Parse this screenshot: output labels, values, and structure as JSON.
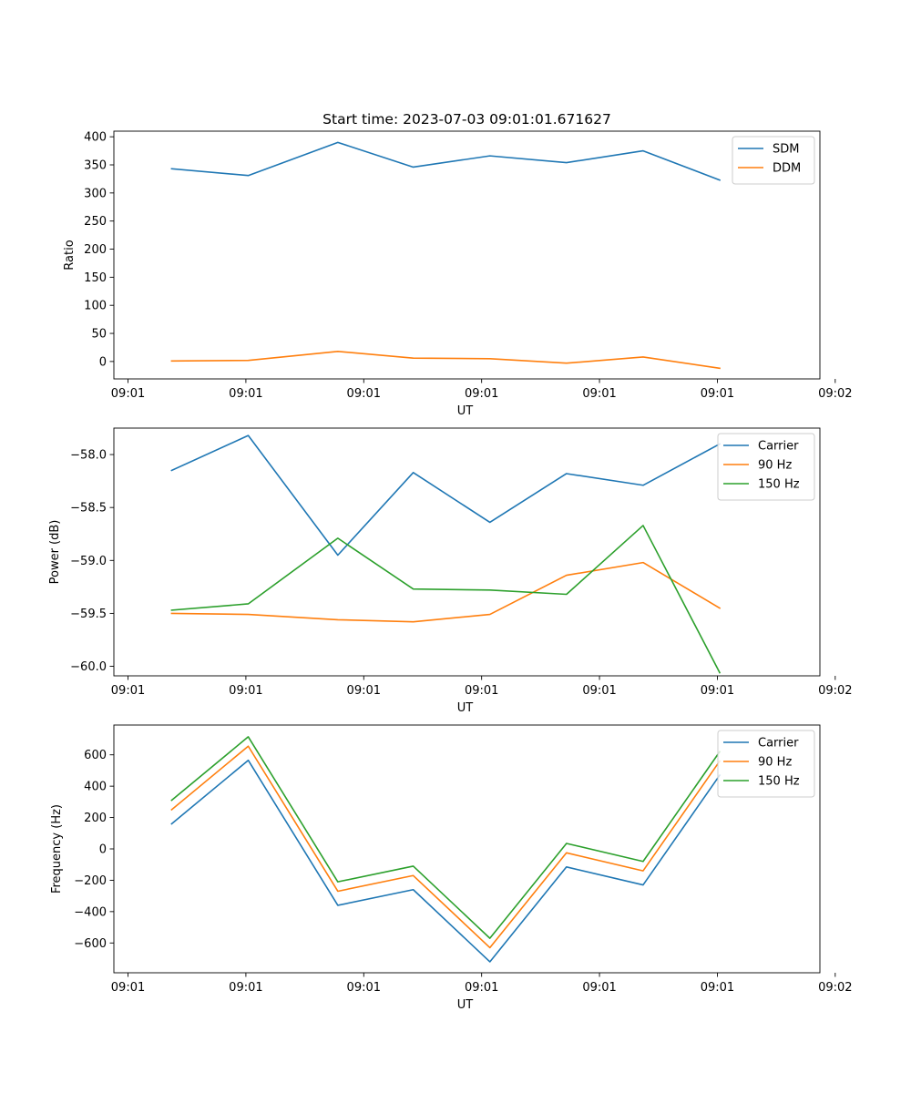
{
  "chart_data": [
    {
      "type": "line",
      "title": "Start time: 2023-07-03 09:01:01.671627",
      "xlabel": "UT",
      "ylabel": "Ratio",
      "legend": "top-right",
      "grid": false,
      "xlim": [
        -0.12,
        5.87
      ],
      "ylim": [
        -31,
        410
      ],
      "x": [
        0.37,
        1.02,
        1.78,
        2.42,
        3.07,
        3.72,
        4.37,
        5.02
      ],
      "xticks": [
        0,
        1,
        2,
        3,
        4,
        5,
        6
      ],
      "xtick_labels": [
        "09:01",
        "09:01",
        "09:01",
        "09:01",
        "09:01",
        "09:01",
        "09:02"
      ],
      "yticks": [
        0,
        50,
        100,
        150,
        200,
        250,
        300,
        350,
        400
      ],
      "ytick_labels": [
        "0",
        "50",
        "100",
        "150",
        "200",
        "250",
        "300",
        "350",
        "400"
      ],
      "series": [
        {
          "name": "SDM",
          "color": "#1f77b4",
          "values": [
            343,
            331,
            390,
            346,
            366,
            354,
            375,
            323
          ]
        },
        {
          "name": "DDM",
          "color": "#ff7f0e",
          "values": [
            1,
            2,
            18,
            6,
            5,
            -3,
            8,
            -12
          ]
        }
      ]
    },
    {
      "type": "line",
      "xlabel": "UT",
      "ylabel": "Power (dB)",
      "legend": "top-right",
      "grid": false,
      "xlim": [
        -0.12,
        5.87
      ],
      "ylim": [
        -60.09,
        -57.75
      ],
      "x": [
        0.37,
        1.02,
        1.78,
        2.42,
        3.07,
        3.72,
        4.37,
        5.02
      ],
      "xticks": [
        0,
        1,
        2,
        3,
        4,
        5,
        6
      ],
      "xtick_labels": [
        "09:01",
        "09:01",
        "09:01",
        "09:01",
        "09:01",
        "09:01",
        "09:02"
      ],
      "yticks": [
        -58.0,
        -58.5,
        -59.0,
        -59.5,
        -60.0
      ],
      "ytick_labels": [
        "−58.0",
        "−58.5",
        "−59.0",
        "−59.5",
        "−60.0"
      ],
      "series": [
        {
          "name": "Carrier",
          "color": "#1f77b4",
          "values": [
            -58.15,
            -57.82,
            -58.95,
            -58.17,
            -58.64,
            -58.18,
            -58.29,
            -57.9
          ]
        },
        {
          "name": "90 Hz",
          "color": "#ff7f0e",
          "values": [
            -59.5,
            -59.51,
            -59.56,
            -59.58,
            -59.51,
            -59.14,
            -59.02,
            -59.45
          ]
        },
        {
          "name": "150 Hz",
          "color": "#2ca02c",
          "values": [
            -59.47,
            -59.41,
            -58.79,
            -59.27,
            -59.28,
            -59.32,
            -58.67,
            -60.06
          ]
        }
      ]
    },
    {
      "type": "line",
      "xlabel": "UT",
      "ylabel": "Frequency (Hz)",
      "legend": "top-right",
      "grid": false,
      "xlim": [
        -0.12,
        5.87
      ],
      "ylim": [
        -790,
        790
      ],
      "x": [
        0.37,
        1.02,
        1.78,
        2.42,
        3.07,
        3.72,
        4.37,
        5.02
      ],
      "xticks": [
        0,
        1,
        2,
        3,
        4,
        5,
        6
      ],
      "xtick_labels": [
        "09:01",
        "09:01",
        "09:01",
        "09:01",
        "09:01",
        "09:01",
        "09:02"
      ],
      "yticks": [
        600,
        400,
        200,
        0,
        -200,
        -400,
        -600
      ],
      "ytick_labels": [
        "600",
        "400",
        "200",
        "0",
        "−200",
        "−400",
        "−600"
      ],
      "series": [
        {
          "name": "Carrier",
          "color": "#1f77b4",
          "values": [
            160,
            565,
            -360,
            -260,
            -720,
            -115,
            -230,
            470
          ]
        },
        {
          "name": "90 Hz",
          "color": "#ff7f0e",
          "values": [
            250,
            655,
            -270,
            -170,
            -630,
            -25,
            -140,
            560
          ]
        },
        {
          "name": "150 Hz",
          "color": "#2ca02c",
          "values": [
            310,
            715,
            -210,
            -110,
            -570,
            35,
            -80,
            620
          ]
        }
      ]
    }
  ]
}
